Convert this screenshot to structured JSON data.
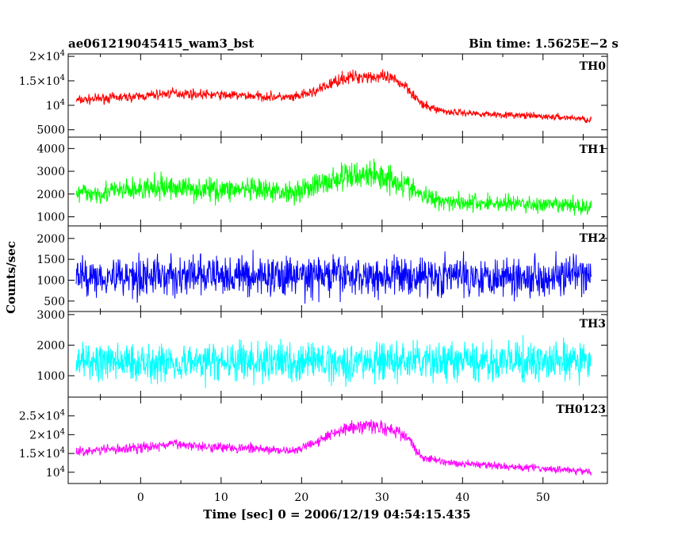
{
  "header": {
    "title": "ae061219045415_wam3_bst",
    "bin_time": "Bin time: 1.5625E−2 s"
  },
  "axes": {
    "ylabel": "Counts/sec",
    "xlabel": "Time [sec] 0 = 2006/12/19 04:54:15.435"
  },
  "chart_data": [
    {
      "type": "line",
      "name": "TH0",
      "color": "#ff0000",
      "xlim": [
        -9,
        58
      ],
      "ylim": [
        3500,
        20500
      ],
      "yticks": [
        {
          "value": 5000,
          "label": "5000"
        },
        {
          "value": 10000,
          "label": "10^4"
        },
        {
          "value": 15000,
          "label": "1.5×10^4"
        },
        {
          "value": 20000,
          "label": "2×10^4"
        }
      ],
      "x": [
        -8,
        -4,
        0,
        4,
        8,
        12,
        16,
        19,
        22,
        25,
        28,
        31,
        33,
        35,
        38,
        42,
        46,
        50,
        54,
        56
      ],
      "y": [
        11000,
        11500,
        11800,
        12500,
        12200,
        12000,
        11800,
        11500,
        13000,
        15500,
        16000,
        15500,
        14000,
        10000,
        8700,
        8300,
        8000,
        7700,
        7400,
        7000
      ],
      "noise": [
        1300,
        1300,
        1300,
        1400,
        1300,
        1300,
        1300,
        1300,
        1500,
        1800,
        1900,
        1800,
        1700,
        1200,
        1000,
        900,
        900,
        900,
        900,
        900
      ]
    },
    {
      "type": "line",
      "name": "TH1",
      "color": "#00ff00",
      "xlim": [
        -9,
        58
      ],
      "ylim": [
        600,
        4500
      ],
      "yticks": [
        {
          "value": 1000,
          "label": "1000"
        },
        {
          "value": 2000,
          "label": "2000"
        },
        {
          "value": 3000,
          "label": "3000"
        },
        {
          "value": 4000,
          "label": "4000"
        }
      ],
      "x": [
        -8,
        -4,
        0,
        4,
        8,
        12,
        16,
        19,
        22,
        25,
        28,
        31,
        33,
        35,
        38,
        42,
        46,
        50,
        54,
        56
      ],
      "y": [
        2000,
        2100,
        2200,
        2300,
        2200,
        2200,
        2100,
        2100,
        2400,
        2700,
        2900,
        2700,
        2400,
        1900,
        1700,
        1600,
        1600,
        1500,
        1500,
        1400
      ],
      "noise": [
        650,
        650,
        700,
        750,
        700,
        700,
        650,
        650,
        750,
        850,
        900,
        850,
        750,
        600,
        550,
        550,
        550,
        500,
        500,
        500
      ]
    },
    {
      "type": "line",
      "name": "TH2",
      "color": "#0000ff",
      "xlim": [
        -9,
        58
      ],
      "ylim": [
        250,
        2300
      ],
      "yticks": [
        {
          "value": 500,
          "label": "500"
        },
        {
          "value": 1000,
          "label": "1000"
        },
        {
          "value": 1500,
          "label": "1500"
        },
        {
          "value": 2000,
          "label": "2000"
        }
      ],
      "x": [
        -8,
        56
      ],
      "y": [
        1100,
        1100
      ],
      "noise": [
        650,
        650
      ]
    },
    {
      "type": "line",
      "name": "TH3",
      "color": "#00ffff",
      "xlim": [
        -9,
        58
      ],
      "ylim": [
        300,
        3100
      ],
      "yticks": [
        {
          "value": 1000,
          "label": "1000"
        },
        {
          "value": 2000,
          "label": "2000"
        },
        {
          "value": 3000,
          "label": "3000"
        }
      ],
      "x": [
        -8,
        56
      ],
      "y": [
        1450,
        1450
      ],
      "noise": [
        850,
        850
      ]
    },
    {
      "type": "line",
      "name": "TH0123",
      "color": "#ff00ff",
      "xlim": [
        -9,
        58
      ],
      "ylim": [
        7000,
        30000
      ],
      "yticks": [
        {
          "value": 10000,
          "label": "10^4"
        },
        {
          "value": 15000,
          "label": "1.5×10^4"
        },
        {
          "value": 20000,
          "label": "2×10^4"
        },
        {
          "value": 25000,
          "label": "2.5×10^4"
        }
      ],
      "x": [
        -8,
        -4,
        0,
        4,
        8,
        12,
        16,
        19,
        22,
        25,
        28,
        31,
        33,
        35,
        38,
        42,
        46,
        50,
        54,
        56
      ],
      "y": [
        15500,
        16000,
        16500,
        17500,
        17000,
        16500,
        16000,
        15500,
        18500,
        21500,
        22500,
        21500,
        19500,
        14000,
        12500,
        12000,
        11500,
        11000,
        10500,
        10000
      ],
      "noise": [
        1700,
        1700,
        1800,
        1900,
        1800,
        1800,
        1700,
        1700,
        2100,
        2500,
        2700,
        2500,
        2300,
        1600,
        1400,
        1300,
        1300,
        1300,
        1300,
        1300
      ]
    }
  ],
  "xticks": [
    {
      "value": 0,
      "label": "0"
    },
    {
      "value": 10,
      "label": "10"
    },
    {
      "value": 20,
      "label": "20"
    },
    {
      "value": 30,
      "label": "30"
    },
    {
      "value": 40,
      "label": "40"
    },
    {
      "value": 50,
      "label": "50"
    }
  ]
}
